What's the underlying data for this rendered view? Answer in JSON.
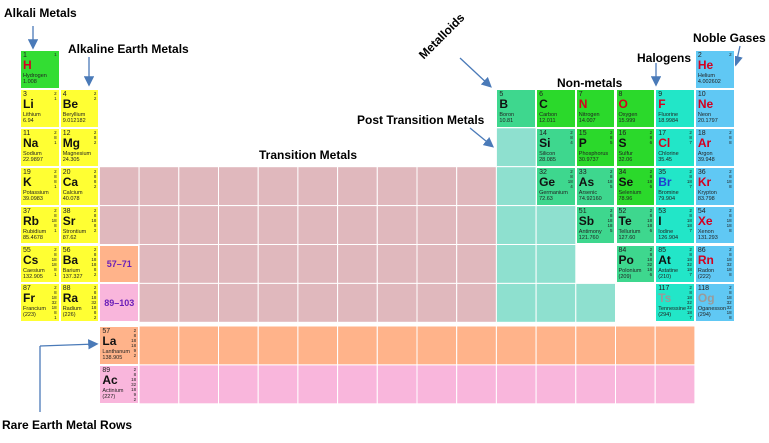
{
  "labels": {
    "alkali": "Alkali Metals",
    "alkaline": "Alkaline Earth Metals",
    "metalloids": "Metalloids",
    "nonmetals": "Non-metals",
    "halogens": "Halogens",
    "noble": "Noble Gases",
    "post_transition": "Post Transition Metals",
    "transition": "Transition Metals",
    "rare_earth": "Rare Earth Metal Rows"
  },
  "colors": {
    "alkali": "#ffff33",
    "hydrogen": "#33dd33",
    "transition": "#e0b8bd",
    "post_transition": "#8ee0cf",
    "metalloid": "#3ed78e",
    "nonmetal": "#2bd92b",
    "halogen": "#22e6c8",
    "noble": "#60c8f4",
    "lanthanide": "#ffb38a",
    "actinide": "#f9b6dc",
    "arrow": "#4a7ab8"
  },
  "refs": {
    "lanthanides": "57–71",
    "actinides": "89–103"
  },
  "elements": [
    {
      "n": "1",
      "s": "H",
      "name": "Hydrogen",
      "m": "1.008",
      "sh": "1",
      "c": "hydrogen",
      "sc": "#d4001f"
    },
    {
      "n": "3",
      "s": "Li",
      "name": "Lithium",
      "m": "6.94",
      "sh": "2\n1",
      "c": "alkali",
      "sc": "#111"
    },
    {
      "n": "4",
      "s": "Be",
      "name": "Beryllium",
      "m": "9.012182",
      "sh": "2\n2",
      "c": "alkali",
      "sc": "#111"
    },
    {
      "n": "11",
      "s": "Na",
      "name": "Sodium",
      "m": "22.9897",
      "sh": "2\n8\n1",
      "c": "alkali",
      "sc": "#111"
    },
    {
      "n": "12",
      "s": "Mg",
      "name": "Magnesium",
      "m": "24.305",
      "sh": "2\n8\n2",
      "c": "alkali",
      "sc": "#111"
    },
    {
      "n": "19",
      "s": "K",
      "name": "Potassium",
      "m": "39.0983",
      "sh": "2\n8\n8\n1",
      "c": "alkali",
      "sc": "#111"
    },
    {
      "n": "20",
      "s": "Ca",
      "name": "Calcium",
      "m": "40.078",
      "sh": "2\n8\n8\n2",
      "c": "alkali",
      "sc": "#111"
    },
    {
      "n": "37",
      "s": "Rb",
      "name": "Rubidium",
      "m": "85.4678",
      "sh": "2\n8\n18\n8\n1",
      "c": "alkali",
      "sc": "#111"
    },
    {
      "n": "38",
      "s": "Sr",
      "name": "Strontium",
      "m": "87.62",
      "sh": "2\n8\n18\n8\n2",
      "c": "alkali",
      "sc": "#111"
    },
    {
      "n": "55",
      "s": "Cs",
      "name": "Caesium",
      "m": "132.905",
      "sh": "2\n8\n18\n18\n8\n1",
      "c": "alkali",
      "sc": "#111"
    },
    {
      "n": "56",
      "s": "Ba",
      "name": "Barium",
      "m": "137.327",
      "sh": "2\n8\n18\n18\n8\n2",
      "c": "alkali",
      "sc": "#111"
    },
    {
      "n": "87",
      "s": "Fr",
      "name": "Francium",
      "m": "(223)",
      "sh": "2\n8\n18\n32\n18\n8\n1",
      "c": "alkali",
      "sc": "#111"
    },
    {
      "n": "88",
      "s": "Ra",
      "name": "Radium",
      "m": "(226)",
      "sh": "2\n8\n18\n32\n18\n8\n2",
      "c": "alkali",
      "sc": "#111"
    },
    {
      "n": "5",
      "s": "B",
      "name": "Boron",
      "m": "10.81",
      "sh": "",
      "c": "metalloid",
      "sc": "#111"
    },
    {
      "n": "6",
      "s": "C",
      "name": "Carbon",
      "m": "12.011",
      "sh": "",
      "c": "nonmetal",
      "sc": "#111"
    },
    {
      "n": "7",
      "s": "N",
      "name": "Nitrogen",
      "m": "14.007",
      "sh": "",
      "c": "nonmetal",
      "sc": "#d4001f"
    },
    {
      "n": "8",
      "s": "O",
      "name": "Oxygen",
      "m": "15.999",
      "sh": "",
      "c": "nonmetal",
      "sc": "#d4001f"
    },
    {
      "n": "9",
      "s": "F",
      "name": "Fluorine",
      "m": "18.9984",
      "sh": "",
      "c": "halogen",
      "sc": "#d4001f"
    },
    {
      "n": "10",
      "s": "Ne",
      "name": "Neon",
      "m": "20.1797",
      "sh": "",
      "c": "noble",
      "sc": "#d4001f"
    },
    {
      "n": "2",
      "s": "He",
      "name": "Helium",
      "m": "4.002602",
      "sh": "2",
      "c": "noble",
      "sc": "#d4001f"
    },
    {
      "n": "14",
      "s": "Si",
      "name": "Silicon",
      "m": "28.085",
      "sh": "2\n8\n4",
      "c": "metalloid",
      "sc": "#111"
    },
    {
      "n": "15",
      "s": "P",
      "name": "Phosphorus",
      "m": "30.9737",
      "sh": "2\n8\n5",
      "c": "nonmetal",
      "sc": "#111"
    },
    {
      "n": "16",
      "s": "S",
      "name": "Sulfur",
      "m": "32.06",
      "sh": "2\n8\n6",
      "c": "nonmetal",
      "sc": "#111"
    },
    {
      "n": "17",
      "s": "Cl",
      "name": "Chlorine",
      "m": "35.45",
      "sh": "2\n8\n7",
      "c": "halogen",
      "sc": "#d4001f"
    },
    {
      "n": "18",
      "s": "Ar",
      "name": "Argon",
      "m": "39.948",
      "sh": "2\n8\n8",
      "c": "noble",
      "sc": "#d4001f"
    },
    {
      "n": "32",
      "s": "Ge",
      "name": "Germanium",
      "m": "72.63",
      "sh": "2\n8\n18\n4",
      "c": "metalloid",
      "sc": "#111"
    },
    {
      "n": "33",
      "s": "As",
      "name": "Arsenic",
      "m": "74.92160",
      "sh": "2\n8\n18\n5",
      "c": "metalloid",
      "sc": "#111"
    },
    {
      "n": "34",
      "s": "Se",
      "name": "Selenium",
      "m": "78.96",
      "sh": "2\n8\n18\n6",
      "c": "nonmetal",
      "sc": "#111"
    },
    {
      "n": "35",
      "s": "Br",
      "name": "Bromine",
      "m": "79.904",
      "sh": "2\n8\n18\n7",
      "c": "halogen",
      "sc": "#1f3fd1"
    },
    {
      "n": "36",
      "s": "Kr",
      "name": "Krypton",
      "m": "83.798",
      "sh": "2\n8\n18\n8",
      "c": "noble",
      "sc": "#d4001f"
    },
    {
      "n": "51",
      "s": "Sb",
      "name": "Antimony",
      "m": "121.760",
      "sh": "2\n8\n18\n18\n5",
      "c": "metalloid",
      "sc": "#111"
    },
    {
      "n": "52",
      "s": "Te",
      "name": "Tellurium",
      "m": "127.60",
      "sh": "2\n8\n18\n18\n6",
      "c": "metalloid",
      "sc": "#111"
    },
    {
      "n": "53",
      "s": "I",
      "name": "Iodine",
      "m": "126.904",
      "sh": "2\n8\n18\n18\n7",
      "c": "halogen",
      "sc": "#111"
    },
    {
      "n": "54",
      "s": "Xe",
      "name": "Xenon",
      "m": "131.293",
      "sh": "2\n8\n18\n18\n8",
      "c": "noble",
      "sc": "#d4001f"
    },
    {
      "n": "84",
      "s": "Po",
      "name": "Polonium",
      "m": "(209)",
      "sh": "2\n8\n18\n32\n18\n6",
      "c": "metalloid",
      "sc": "#111"
    },
    {
      "n": "85",
      "s": "At",
      "name": "Astatine",
      "m": "(210)",
      "sh": "2\n8\n18\n32\n18\n7",
      "c": "halogen",
      "sc": "#111"
    },
    {
      "n": "86",
      "s": "Rn",
      "name": "Radon",
      "m": "(222)",
      "sh": "2\n8\n18\n32\n18\n8",
      "c": "noble",
      "sc": "#d4001f"
    },
    {
      "n": "117",
      "s": "Ts",
      "name": "Tennessine",
      "m": "(294)",
      "sh": "2\n8\n18\n32\n32\n18\n7",
      "c": "halogen",
      "sc": "#9a9a9a"
    },
    {
      "n": "118",
      "s": "Og",
      "name": "Oganesson",
      "m": "(294)",
      "sh": "2\n8\n18\n32\n32\n18\n8",
      "c": "noble",
      "sc": "#9a9a9a"
    },
    {
      "n": "57",
      "s": "La",
      "name": "Lanthanum",
      "m": "138.905",
      "sh": "2\n8\n18\n18\n9\n2",
      "c": "lanthanide",
      "sc": "#111"
    },
    {
      "n": "89",
      "s": "Ac",
      "name": "Actinium",
      "m": "(227)",
      "sh": "2\n8\n18\n32\n18\n9\n2",
      "c": "actinide",
      "sc": "#111"
    }
  ]
}
